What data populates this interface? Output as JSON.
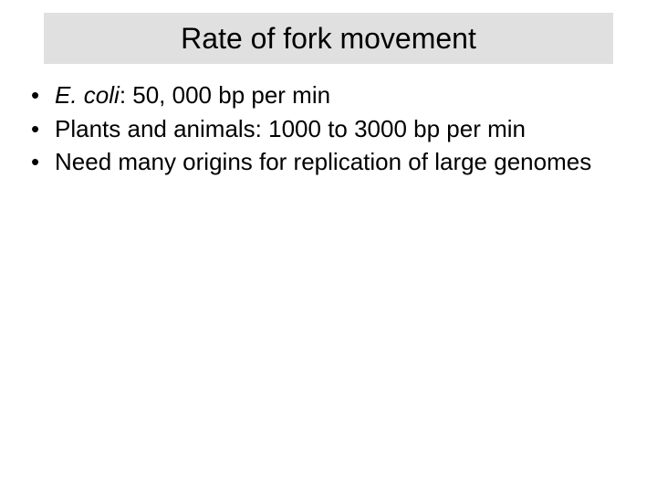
{
  "slide": {
    "title": "Rate of fork movement",
    "bullets": [
      {
        "prefix_italic": "E. coli",
        "rest": ": 50, 000 bp per min"
      },
      {
        "text": "Plants and animals: 1000 to 3000  bp per min"
      },
      {
        "text": "Need many origins for replication of large genomes"
      }
    ],
    "style": {
      "background_color": "#ffffff",
      "title_box_color": "#e0e0e0",
      "title_fontsize": 32,
      "body_fontsize": 26,
      "text_color": "#000000",
      "font_family": "Arial"
    }
  }
}
